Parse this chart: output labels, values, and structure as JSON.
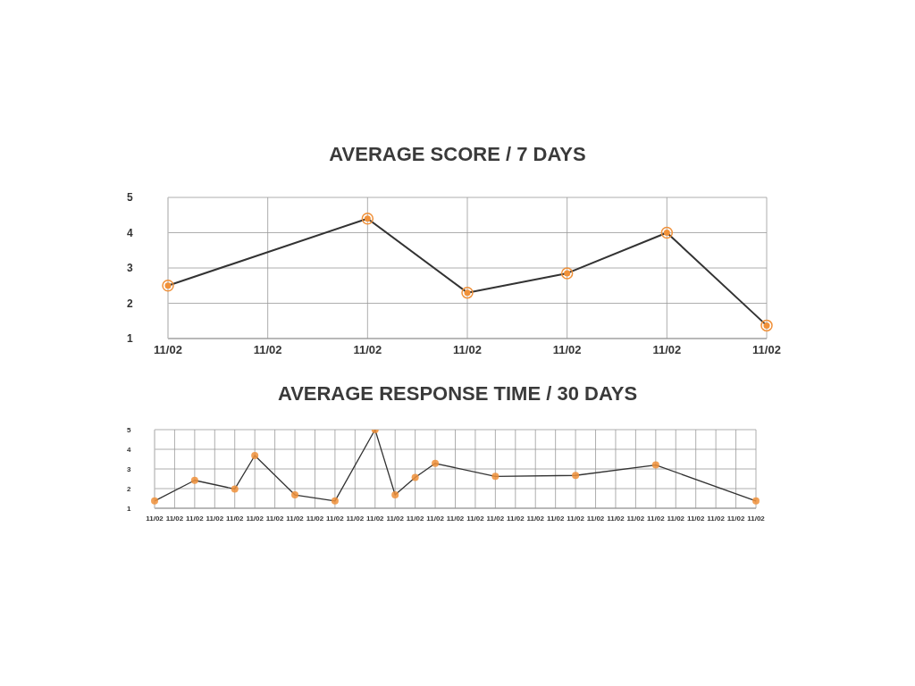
{
  "chart_data": [
    {
      "type": "line",
      "title": "AVERAGE SCORE / 7 DAYS",
      "categories": [
        "11/02",
        "11/02",
        "11/02",
        "11/02",
        "11/02",
        "11/02",
        "11/02"
      ],
      "series": [
        {
          "color": "#333333",
          "colors": [
            "#f0913a",
            null,
            "#f0913a",
            "#f0913a",
            "#f0913a",
            "#f0913a",
            "#f0913a"
          ],
          "values": [
            2.5,
            null,
            4.4,
            2.3,
            2.85,
            4.0,
            1.37
          ]
        }
      ],
      "ylim": [
        1,
        5
      ],
      "yticks": [
        1,
        2,
        3,
        4,
        5
      ],
      "grid": true,
      "marker": "circle",
      "line_style": "solid"
    },
    {
      "type": "line",
      "title": "AVERAGE RESPONSE TIME / 30 DAYS",
      "categories": [
        "11/02",
        "11/02",
        "11/02",
        "11/02",
        "11/02",
        "11/02",
        "11/02",
        "11/02",
        "11/02",
        "11/02",
        "11/02",
        "11/02",
        "11/02",
        "11/02",
        "11/02",
        "11/02",
        "11/02",
        "11/02",
        "11/02",
        "11/02",
        "11/02",
        "11/02",
        "11/02",
        "11/02",
        "11/02",
        "11/02",
        "11/02",
        "11/02",
        "11/02",
        "11/02",
        "11/02"
      ],
      "series": [
        {
          "color": "#333333",
          "colors": [
            "#f0913a",
            null,
            "#f0913a",
            null,
            "#f0913a",
            "#f0913a",
            null,
            "#f0913a",
            null,
            "#f0913a",
            null,
            "#f0913a",
            "#f0913a",
            "#f0913a",
            "#f0913a",
            null,
            null,
            "#f0913a",
            null,
            null,
            null,
            "#f0913a",
            null,
            null,
            null,
            "#f0913a",
            null,
            null,
            null,
            null,
            "#f0913a"
          ],
          "values": [
            1.37,
            null,
            2.42,
            null,
            1.98,
            3.68,
            null,
            1.68,
            null,
            1.37,
            null,
            5.0,
            1.68,
            2.57,
            3.28,
            null,
            null,
            2.62,
            null,
            null,
            null,
            2.67,
            null,
            null,
            null,
            3.2,
            null,
            null,
            null,
            null,
            1.37
          ]
        }
      ],
      "ylim": [
        1,
        5
      ],
      "yticks": [
        1,
        2,
        3,
        4,
        5
      ],
      "grid": true,
      "marker": "circle",
      "line_style": "solid"
    }
  ]
}
